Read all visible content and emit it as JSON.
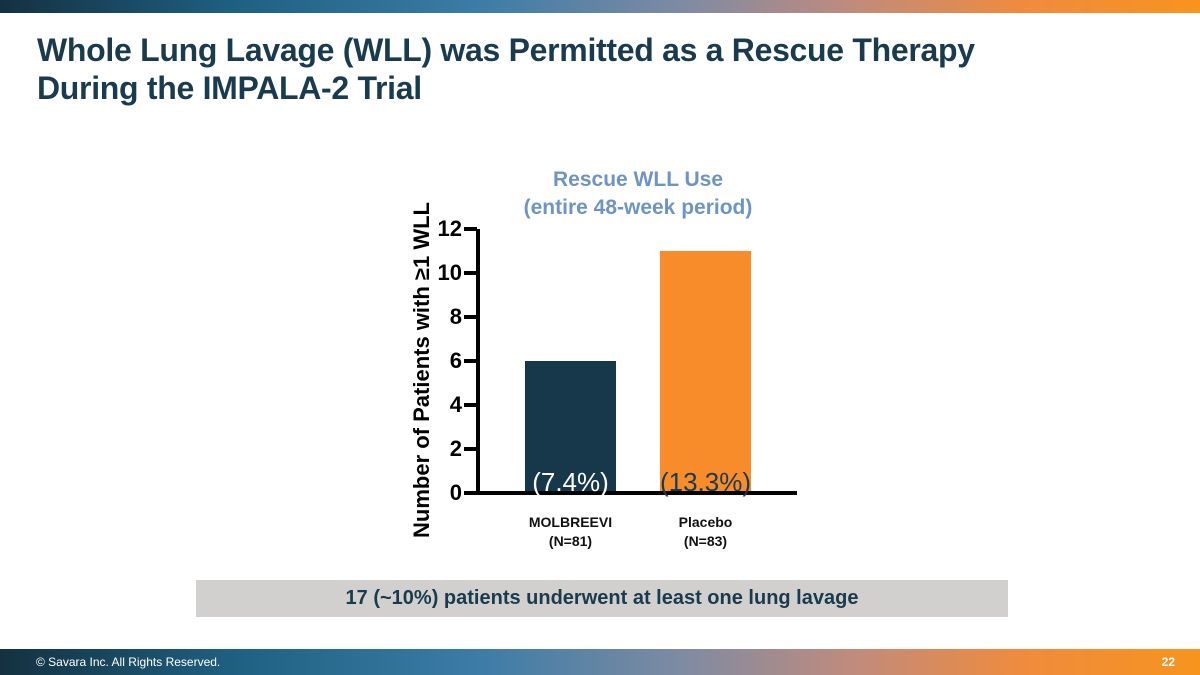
{
  "slide": {
    "title_lines": [
      "Whole Lung Lavage (WLL) was Permitted as a Rescue Therapy",
      "During the IMPALA-2 Trial"
    ],
    "callout": "17 (~10%) patients underwent at least one lung lavage",
    "footer": {
      "copyright": "© Savara Inc. All Rights Reserved.",
      "page_number": "22"
    }
  },
  "colors": {
    "title_text": "#1a3b4d",
    "chart_title_text": "#6e94c4",
    "callout_bg": "#d1d0ce",
    "axis": "#000000"
  },
  "chart_data": {
    "type": "bar",
    "title": "Rescue WLL Use",
    "subtitle": "(entire 48-week period)",
    "xlabel": "",
    "ylabel": "Number of Patients with ≥1 WLL",
    "ylim": [
      0,
      12
    ],
    "yticks": [
      0,
      2,
      4,
      6,
      8,
      10,
      12
    ],
    "grid": false,
    "legend": "none",
    "bars": [
      {
        "category": "MOLBREEVI",
        "n_label": "(N=81)",
        "value": 6,
        "percent_label": "(7.4%)",
        "bar_color": "#16384a",
        "percent_label_color": "#ffffff"
      },
      {
        "category": "Placebo",
        "n_label": "(N=83)",
        "value": 11,
        "percent_label": "(13.3%)",
        "bar_color": "#f88c2b",
        "percent_label_color": "#1a3b4d"
      }
    ]
  }
}
